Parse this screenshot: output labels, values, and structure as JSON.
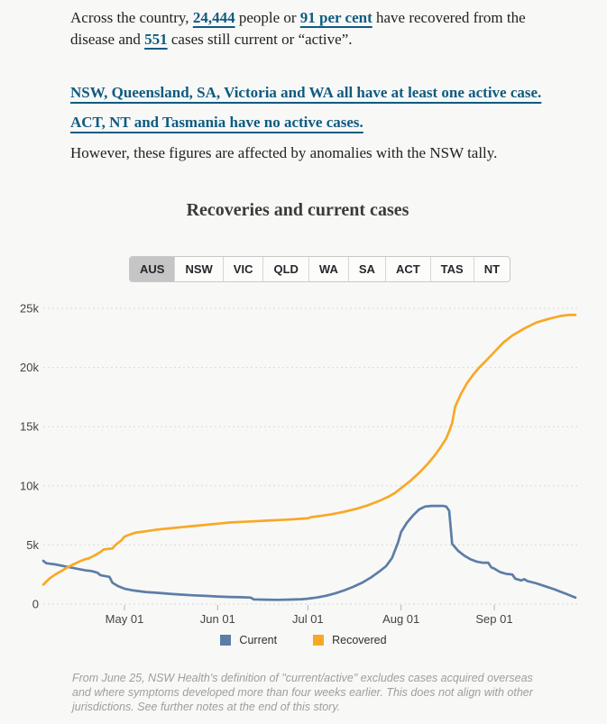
{
  "colors": {
    "current": "#5b7ea6",
    "recovered": "#f9a825",
    "link": "#0f5b80",
    "tab_selected_bg": "#c5c5c5",
    "grid": "#d9d9d9",
    "page_bg": "#f8f8f7"
  },
  "intro": {
    "segments": [
      {
        "text": "Across the country, ",
        "link": false
      },
      {
        "text": "24,444",
        "link": true
      },
      {
        "text": " people or ",
        "link": false
      },
      {
        "text": "91 per cent",
        "link": true
      },
      {
        "text": " have recovered from the disease and ",
        "link": false
      },
      {
        "text": "551",
        "link": true
      },
      {
        "text": " cases still current or “active”.",
        "link": false
      }
    ]
  },
  "link_paragraph": {
    "lines": [
      "NSW, Queensland, SA, Victoria and WA all have at least one active case.",
      "ACT, NT and Tasmania have no active cases."
    ]
  },
  "paragraphs": {
    "anomalies": "However, these figures are affected by anomalies with the NSW tally."
  },
  "tabs": {
    "selected_label": "AUS",
    "items": [
      {
        "label": "AUS"
      },
      {
        "label": "NSW"
      },
      {
        "label": "VIC"
      },
      {
        "label": "QLD"
      },
      {
        "label": "WA"
      },
      {
        "label": "SA"
      },
      {
        "label": "ACT"
      },
      {
        "label": "TAS"
      },
      {
        "label": "NT"
      }
    ]
  },
  "footnote": "From June 25, NSW Health's definition of \"current/active\" excludes cases acquired overseas and where symptoms developed more than four weeks earlier. This does not align with other jurisdictions. See further notes at the end of this story.",
  "chart_data": {
    "type": "line",
    "title": "Recoveries and current cases",
    "legend": [
      "Current",
      "Recovered"
    ],
    "x_unit": "days since 2020-04-04",
    "x_domain_days": 177,
    "ylim": [
      0,
      25000
    ],
    "grid": "dotted-horizontal",
    "legend_position": "bottom-center",
    "x_ticks": [
      {
        "day": 27,
        "label": "May 01"
      },
      {
        "day": 58,
        "label": "Jun 01"
      },
      {
        "day": 88,
        "label": "Jul 01"
      },
      {
        "day": 119,
        "label": "Aug 01"
      },
      {
        "day": 150,
        "label": "Sep 01"
      }
    ],
    "y_ticks": [
      {
        "v": 0,
        "label": "0"
      },
      {
        "v": 5000,
        "label": "5k"
      },
      {
        "v": 10000,
        "label": "10k"
      },
      {
        "v": 15000,
        "label": "15k"
      },
      {
        "v": 20000,
        "label": "20k"
      },
      {
        "v": 25000,
        "label": "25k"
      }
    ],
    "series": [
      {
        "name": "Current",
        "color": "#5b7ea6",
        "points": [
          [
            0,
            3650
          ],
          [
            1,
            3450
          ],
          [
            4,
            3350
          ],
          [
            8,
            3150
          ],
          [
            12,
            2950
          ],
          [
            14,
            2850
          ],
          [
            16,
            2800
          ],
          [
            18,
            2650
          ],
          [
            19,
            2450
          ],
          [
            21,
            2350
          ],
          [
            22,
            2300
          ],
          [
            23,
            1800
          ],
          [
            25,
            1500
          ],
          [
            27,
            1300
          ],
          [
            30,
            1150
          ],
          [
            34,
            1020
          ],
          [
            38,
            950
          ],
          [
            42,
            870
          ],
          [
            46,
            800
          ],
          [
            50,
            740
          ],
          [
            54,
            690
          ],
          [
            58,
            640
          ],
          [
            62,
            600
          ],
          [
            66,
            580
          ],
          [
            69,
            550
          ],
          [
            70,
            400
          ],
          [
            74,
            370
          ],
          [
            78,
            360
          ],
          [
            82,
            380
          ],
          [
            86,
            410
          ],
          [
            88,
            460
          ],
          [
            91,
            560
          ],
          [
            94,
            700
          ],
          [
            97,
            900
          ],
          [
            100,
            1150
          ],
          [
            103,
            1450
          ],
          [
            106,
            1800
          ],
          [
            109,
            2250
          ],
          [
            112,
            2800
          ],
          [
            114,
            3200
          ],
          [
            116,
            3900
          ],
          [
            118,
            5200
          ],
          [
            119,
            6100
          ],
          [
            121,
            6900
          ],
          [
            123,
            7500
          ],
          [
            125,
            8000
          ],
          [
            127,
            8250
          ],
          [
            129,
            8300
          ],
          [
            131,
            8300
          ],
          [
            133,
            8300
          ],
          [
            134,
            8250
          ],
          [
            135,
            7900
          ],
          [
            136,
            5100
          ],
          [
            138,
            4500
          ],
          [
            140,
            4100
          ],
          [
            142,
            3800
          ],
          [
            144,
            3600
          ],
          [
            146,
            3500
          ],
          [
            148,
            3500
          ],
          [
            149,
            3100
          ],
          [
            150,
            3000
          ],
          [
            152,
            2700
          ],
          [
            154,
            2550
          ],
          [
            156,
            2500
          ],
          [
            157,
            2150
          ],
          [
            159,
            2000
          ],
          [
            160,
            2100
          ],
          [
            161,
            1950
          ],
          [
            164,
            1750
          ],
          [
            167,
            1500
          ],
          [
            170,
            1250
          ],
          [
            172,
            1050
          ],
          [
            174,
            850
          ],
          [
            176,
            650
          ],
          [
            177,
            551
          ]
        ]
      },
      {
        "name": "Recovered",
        "color": "#f9a825",
        "points": [
          [
            0,
            1650
          ],
          [
            2,
            2150
          ],
          [
            4,
            2500
          ],
          [
            6,
            2800
          ],
          [
            8,
            3100
          ],
          [
            10,
            3350
          ],
          [
            12,
            3600
          ],
          [
            14,
            3800
          ],
          [
            15,
            3850
          ],
          [
            17,
            4100
          ],
          [
            19,
            4400
          ],
          [
            20,
            4600
          ],
          [
            21,
            4650
          ],
          [
            23,
            4700
          ],
          [
            24,
            5000
          ],
          [
            26,
            5400
          ],
          [
            27,
            5700
          ],
          [
            29,
            5900
          ],
          [
            31,
            6050
          ],
          [
            34,
            6150
          ],
          [
            38,
            6300
          ],
          [
            42,
            6400
          ],
          [
            46,
            6500
          ],
          [
            50,
            6600
          ],
          [
            54,
            6700
          ],
          [
            58,
            6800
          ],
          [
            62,
            6900
          ],
          [
            66,
            6950
          ],
          [
            70,
            7000
          ],
          [
            74,
            7050
          ],
          [
            78,
            7100
          ],
          [
            82,
            7150
          ],
          [
            85,
            7200
          ],
          [
            88,
            7250
          ],
          [
            89,
            7350
          ],
          [
            92,
            7450
          ],
          [
            96,
            7600
          ],
          [
            100,
            7800
          ],
          [
            104,
            8050
          ],
          [
            108,
            8350
          ],
          [
            112,
            8750
          ],
          [
            115,
            9100
          ],
          [
            117,
            9400
          ],
          [
            119,
            9800
          ],
          [
            122,
            10400
          ],
          [
            125,
            11100
          ],
          [
            128,
            11900
          ],
          [
            130,
            12500
          ],
          [
            132,
            13200
          ],
          [
            134,
            14000
          ],
          [
            135,
            14600
          ],
          [
            136,
            15300
          ],
          [
            137,
            16700
          ],
          [
            139,
            17800
          ],
          [
            141,
            18700
          ],
          [
            143,
            19400
          ],
          [
            145,
            20000
          ],
          [
            147,
            20500
          ],
          [
            150,
            21300
          ],
          [
            153,
            22100
          ],
          [
            156,
            22700
          ],
          [
            160,
            23300
          ],
          [
            164,
            23800
          ],
          [
            168,
            24100
          ],
          [
            172,
            24350
          ],
          [
            175,
            24450
          ],
          [
            177,
            24444
          ]
        ]
      }
    ]
  }
}
